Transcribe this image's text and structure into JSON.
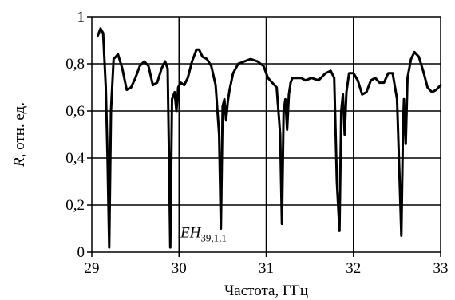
{
  "chart_data": {
    "type": "line",
    "xlabel": "Частота, ГГц",
    "ylabel_italic": "R",
    "ylabel_rest": ", отн. ед.",
    "xlim": [
      29,
      33
    ],
    "ylim": [
      0,
      1
    ],
    "x_ticks": [
      "29",
      "30",
      "31",
      "32",
      "33"
    ],
    "y_ticks": [
      "0",
      "0,2",
      "0,4",
      "0,6",
      "0,8",
      "1"
    ],
    "grid": true,
    "annotation": {
      "main": "EH",
      "sub": "39,1,1",
      "x": 29.98,
      "y": 0.05
    },
    "series": [
      {
        "x": [
          29.07,
          29.1,
          29.13,
          29.16,
          29.18,
          29.2,
          29.22,
          29.25,
          29.3,
          29.35,
          29.4,
          29.45,
          29.5,
          29.55,
          29.6,
          29.65,
          29.7,
          29.75,
          29.8,
          29.84,
          29.87,
          29.89,
          29.9,
          29.92,
          29.95,
          29.97,
          29.99,
          30.02,
          30.06,
          30.1,
          30.15,
          30.2,
          30.23,
          30.27,
          30.32,
          30.37,
          30.42,
          30.46,
          30.48,
          30.5,
          30.52,
          30.54,
          30.56,
          30.58,
          30.62,
          30.68,
          30.75,
          30.82,
          30.9,
          30.97,
          31.02,
          31.07,
          31.12,
          31.16,
          31.18,
          31.2,
          31.22,
          31.24,
          31.26,
          31.28,
          31.3,
          31.35,
          31.4,
          31.45,
          31.52,
          31.6,
          31.68,
          31.74,
          31.78,
          31.81,
          31.84,
          31.86,
          31.88,
          31.9,
          31.92,
          31.95,
          32.0,
          32.05,
          32.1,
          32.15,
          32.2,
          32.25,
          32.3,
          32.35,
          32.4,
          32.45,
          32.5,
          32.53,
          32.55,
          32.57,
          32.58,
          32.6,
          32.62,
          32.66,
          32.7,
          32.75,
          32.8,
          32.85,
          32.9,
          32.95,
          33.0
        ],
        "y": [
          0.92,
          0.95,
          0.93,
          0.7,
          0.4,
          0.02,
          0.6,
          0.82,
          0.84,
          0.78,
          0.69,
          0.7,
          0.74,
          0.79,
          0.81,
          0.79,
          0.71,
          0.72,
          0.78,
          0.81,
          0.78,
          0.3,
          0.02,
          0.65,
          0.68,
          0.6,
          0.7,
          0.72,
          0.71,
          0.74,
          0.81,
          0.86,
          0.86,
          0.83,
          0.82,
          0.79,
          0.71,
          0.5,
          0.1,
          0.62,
          0.65,
          0.56,
          0.64,
          0.69,
          0.76,
          0.8,
          0.81,
          0.82,
          0.81,
          0.79,
          0.74,
          0.72,
          0.7,
          0.5,
          0.12,
          0.6,
          0.65,
          0.52,
          0.67,
          0.72,
          0.74,
          0.74,
          0.74,
          0.73,
          0.74,
          0.73,
          0.76,
          0.77,
          0.74,
          0.3,
          0.09,
          0.6,
          0.67,
          0.5,
          0.68,
          0.76,
          0.76,
          0.73,
          0.67,
          0.68,
          0.73,
          0.74,
          0.72,
          0.72,
          0.76,
          0.76,
          0.65,
          0.3,
          0.07,
          0.55,
          0.65,
          0.46,
          0.74,
          0.82,
          0.85,
          0.83,
          0.77,
          0.7,
          0.68,
          0.69,
          0.71
        ]
      }
    ]
  }
}
